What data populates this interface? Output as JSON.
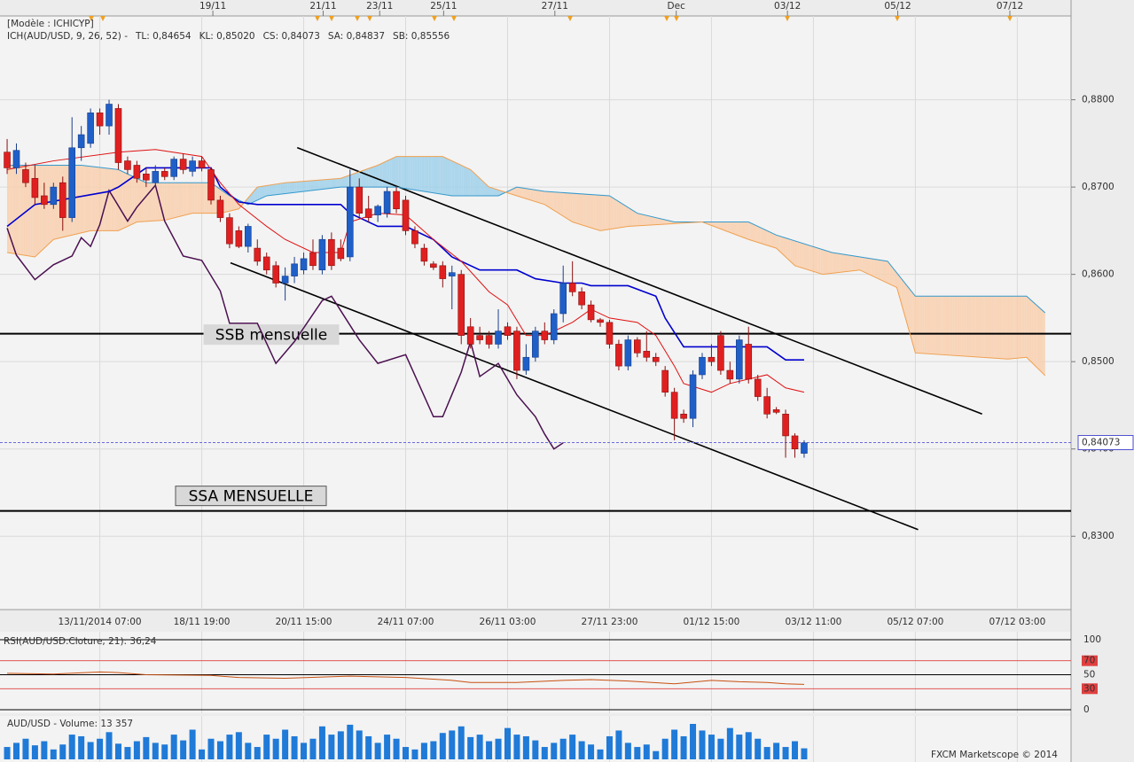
{
  "chart_data": [
    {
      "type": "candlestick",
      "header": [
        {
          "text": "[Modèle : ICHICYP]",
          "color": "#303030"
        },
        {
          "text": "ICH(AUD/USD, 9, 26, 52) -",
          "color": "#cc0000"
        },
        {
          "text": "TL: 0,84654",
          "color": "#cc0000"
        },
        {
          "text": "KL: 0,85020",
          "color": "#0000cc"
        },
        {
          "text": "CS: 0,84073",
          "color": "#4b1050"
        },
        {
          "text": "SA: 0,84837",
          "color": "#f08c30"
        },
        {
          "text": "SB: 0,85556",
          "color": "#3399cc"
        }
      ],
      "xlim": [
        -0.77,
        114.8
      ],
      "ylim": [
        0.8216,
        0.8896
      ],
      "xticks": [
        {
          "value": 10,
          "label": "13/11/2014 07:00"
        },
        {
          "value": 21,
          "label": "18/11 19:00"
        },
        {
          "value": 32,
          "label": "20/11 15:00"
        },
        {
          "value": 43,
          "label": "24/11 07:00"
        },
        {
          "value": 54,
          "label": "26/11 03:00"
        },
        {
          "value": 65,
          "label": "27/11 23:00"
        },
        {
          "value": 76,
          "label": "01/12 15:00"
        },
        {
          "value": 87,
          "label": "03/12 11:00"
        },
        {
          "value": 98,
          "label": "05/12 07:00"
        },
        {
          "value": 109,
          "label": "07/12 03:00"
        }
      ],
      "top_ticks": [
        {
          "value": 22.2,
          "label": "19/11"
        },
        {
          "value": 34.1,
          "label": "21/11"
        },
        {
          "value": 40.2,
          "label": "23/11"
        },
        {
          "value": 47.1,
          "label": "25/11"
        },
        {
          "value": 59.1,
          "label": "27/11"
        },
        {
          "value": 72.2,
          "label": "Dec"
        },
        {
          "value": 84.2,
          "label": "03/12"
        },
        {
          "value": 96.1,
          "label": "05/12"
        },
        {
          "value": 108.2,
          "label": "07/12"
        }
      ],
      "yticks": [
        {
          "value": 0.83,
          "label": "0,8300"
        },
        {
          "value": 0.84,
          "label": "0,8400"
        },
        {
          "value": 0.85,
          "label": "0,8500"
        },
        {
          "value": 0.86,
          "label": "0,8600"
        },
        {
          "value": 0.87,
          "label": "0,8700"
        },
        {
          "value": 0.88,
          "label": "0,8800"
        }
      ],
      "grid": true,
      "up_color": "#1f5fc8",
      "down_color": "#e02020",
      "open": [
        0.874,
        0.8722,
        0.872,
        0.871,
        0.869,
        0.868,
        0.8705,
        0.8665,
        0.8745,
        0.875,
        0.8785,
        0.877,
        0.879,
        0.873,
        0.8725,
        0.8715,
        0.8705,
        0.8718,
        0.8712,
        0.8732,
        0.8718,
        0.873,
        0.872,
        0.8685,
        0.8665,
        0.865,
        0.8632,
        0.863,
        0.862,
        0.861,
        0.859,
        0.8598,
        0.8605,
        0.8625,
        0.8605,
        0.864,
        0.863,
        0.862,
        0.87,
        0.8675,
        0.8668,
        0.867,
        0.8695,
        0.8685,
        0.865,
        0.863,
        0.8612,
        0.861,
        0.8598,
        0.86,
        0.854,
        0.853,
        0.853,
        0.852,
        0.854,
        0.8535,
        0.849,
        0.8505,
        0.8535,
        0.8525,
        0.8555,
        0.859,
        0.858,
        0.8565,
        0.8548,
        0.8545,
        0.852,
        0.8495,
        0.8525,
        0.8512,
        0.8505,
        0.849,
        0.8465,
        0.844,
        0.8435,
        0.8485,
        0.8505,
        0.853,
        0.849,
        0.848,
        0.852,
        0.848,
        0.846,
        0.8445,
        0.844,
        0.8415,
        0.8395
      ],
      "high": [
        0.8755,
        0.875,
        0.8728,
        0.8725,
        0.8705,
        0.8705,
        0.8712,
        0.878,
        0.877,
        0.879,
        0.879,
        0.88,
        0.8795,
        0.8735,
        0.873,
        0.8722,
        0.8725,
        0.8722,
        0.8735,
        0.8738,
        0.8735,
        0.8735,
        0.8722,
        0.869,
        0.867,
        0.8655,
        0.8658,
        0.864,
        0.8625,
        0.8615,
        0.8608,
        0.862,
        0.8625,
        0.864,
        0.8645,
        0.8648,
        0.864,
        0.872,
        0.871,
        0.869,
        0.868,
        0.87,
        0.87,
        0.869,
        0.8655,
        0.8635,
        0.8615,
        0.8615,
        0.861,
        0.8605,
        0.855,
        0.854,
        0.8535,
        0.856,
        0.8545,
        0.854,
        0.852,
        0.854,
        0.8545,
        0.856,
        0.861,
        0.8615,
        0.8585,
        0.857,
        0.855,
        0.8548,
        0.8525,
        0.853,
        0.8528,
        0.8535,
        0.851,
        0.8495,
        0.847,
        0.8445,
        0.849,
        0.851,
        0.852,
        0.8535,
        0.85,
        0.853,
        0.854,
        0.8485,
        0.847,
        0.8448,
        0.8445,
        0.8418,
        0.841
      ],
      "low": [
        0.8715,
        0.8715,
        0.87,
        0.868,
        0.8675,
        0.8675,
        0.865,
        0.866,
        0.873,
        0.8745,
        0.876,
        0.876,
        0.872,
        0.8715,
        0.8705,
        0.87,
        0.87,
        0.8708,
        0.8708,
        0.8715,
        0.8712,
        0.8718,
        0.868,
        0.866,
        0.863,
        0.863,
        0.8625,
        0.861,
        0.86,
        0.8585,
        0.857,
        0.859,
        0.86,
        0.8605,
        0.86,
        0.8605,
        0.8615,
        0.8615,
        0.8665,
        0.866,
        0.866,
        0.8665,
        0.867,
        0.8645,
        0.863,
        0.861,
        0.8605,
        0.8585,
        0.856,
        0.852,
        0.8515,
        0.852,
        0.8515,
        0.8515,
        0.8525,
        0.848,
        0.8485,
        0.85,
        0.852,
        0.852,
        0.8545,
        0.8575,
        0.856,
        0.8545,
        0.854,
        0.8515,
        0.849,
        0.849,
        0.8505,
        0.85,
        0.8495,
        0.846,
        0.841,
        0.843,
        0.8425,
        0.848,
        0.8495,
        0.8485,
        0.8475,
        0.8475,
        0.8475,
        0.8455,
        0.8435,
        0.844,
        0.839,
        0.839,
        0.839
      ],
      "close": [
        0.8722,
        0.8742,
        0.8705,
        0.8688,
        0.868,
        0.87,
        0.8665,
        0.8745,
        0.876,
        0.8785,
        0.877,
        0.8795,
        0.8728,
        0.872,
        0.871,
        0.8708,
        0.8718,
        0.8712,
        0.8732,
        0.872,
        0.873,
        0.8722,
        0.8685,
        0.8665,
        0.8635,
        0.8632,
        0.8655,
        0.8615,
        0.8605,
        0.859,
        0.8598,
        0.8612,
        0.8618,
        0.861,
        0.864,
        0.861,
        0.8618,
        0.87,
        0.867,
        0.8665,
        0.8678,
        0.8695,
        0.8675,
        0.865,
        0.8635,
        0.8615,
        0.8608,
        0.8595,
        0.8602,
        0.853,
        0.852,
        0.8525,
        0.852,
        0.8535,
        0.853,
        0.849,
        0.8505,
        0.8535,
        0.8525,
        0.8555,
        0.859,
        0.858,
        0.8565,
        0.8548,
        0.8545,
        0.852,
        0.8495,
        0.8525,
        0.851,
        0.8505,
        0.85,
        0.8465,
        0.8435,
        0.8435,
        0.8485,
        0.8505,
        0.85,
        0.849,
        0.848,
        0.8525,
        0.848,
        0.846,
        0.844,
        0.8442,
        0.8415,
        0.84,
        0.8407
      ],
      "cloud": {
        "up_fill": "#9fd0ea",
        "down_fill": "#f8cfae"
      },
      "lines": [
        {
          "role": "senkou_b",
          "color": "#3399cc",
          "width": 1,
          "x": [
            0,
            8,
            12,
            15,
            22,
            24,
            26,
            28,
            36,
            42,
            48,
            53,
            55,
            58,
            65,
            68,
            72,
            80,
            83,
            89,
            95,
            98,
            110,
            112
          ],
          "values": [
            0.8725,
            0.8725,
            0.872,
            0.8705,
            0.8705,
            0.869,
            0.868,
            0.869,
            0.87,
            0.87,
            0.869,
            0.869,
            0.87,
            0.8695,
            0.869,
            0.867,
            0.866,
            0.866,
            0.8645,
            0.8625,
            0.8615,
            0.8575,
            0.8575,
            0.8556
          ]
        },
        {
          "role": "senkou_a",
          "color": "#f0a050",
          "width": 1,
          "x": [
            0,
            3,
            5,
            9,
            12,
            14,
            17,
            20,
            23,
            25,
            27,
            30,
            36,
            40,
            42,
            47,
            50,
            52,
            55,
            58,
            61,
            64,
            67,
            75,
            80,
            83,
            85,
            88,
            92,
            96,
            98,
            108,
            110,
            112
          ],
          "values": [
            0.8625,
            0.862,
            0.864,
            0.865,
            0.865,
            0.866,
            0.8662,
            0.867,
            0.867,
            0.8675,
            0.87,
            0.8705,
            0.871,
            0.8725,
            0.8735,
            0.8735,
            0.872,
            0.87,
            0.869,
            0.868,
            0.866,
            0.865,
            0.8655,
            0.866,
            0.864,
            0.863,
            0.861,
            0.86,
            0.8605,
            0.8585,
            0.851,
            0.8503,
            0.8505,
            0.8484
          ]
        },
        {
          "role": "chikou",
          "color": "#4b1050",
          "width": 1.5,
          "x": [
            0,
            1,
            3,
            5,
            7,
            8,
            9,
            10,
            11,
            13,
            14,
            16,
            17,
            19,
            21,
            23,
            24,
            27,
            29,
            31,
            34,
            35,
            38,
            40,
            43,
            46,
            47,
            49,
            50,
            51,
            53,
            55,
            57,
            58,
            59,
            60
          ],
          "values": [
            0.8653,
            0.8622,
            0.8594,
            0.8611,
            0.8621,
            0.8642,
            0.8632,
            0.8657,
            0.8696,
            0.8661,
            0.8677,
            0.8702,
            0.8661,
            0.8621,
            0.8616,
            0.8581,
            0.8544,
            0.8544,
            0.8498,
            0.8523,
            0.857,
            0.8575,
            0.8525,
            0.8498,
            0.8508,
            0.8437,
            0.8437,
            0.8488,
            0.8523,
            0.8483,
            0.8498,
            0.8462,
            0.8437,
            0.8417,
            0.84,
            0.8407
          ]
        },
        {
          "role": "kijun",
          "color": "#0000d0",
          "width": 1.6,
          "x": [
            0,
            3,
            11,
            12,
            15,
            22,
            23,
            25,
            27,
            36,
            37,
            40,
            43,
            44,
            46,
            48,
            51,
            55,
            57,
            60,
            62,
            63,
            67,
            70,
            71,
            73,
            82,
            84,
            86
          ],
          "values": [
            0.8655,
            0.868,
            0.8695,
            0.87,
            0.8722,
            0.8722,
            0.87,
            0.8683,
            0.868,
            0.868,
            0.867,
            0.8655,
            0.8655,
            0.865,
            0.864,
            0.862,
            0.8605,
            0.8605,
            0.8595,
            0.859,
            0.859,
            0.8587,
            0.8587,
            0.8575,
            0.855,
            0.8517,
            0.8517,
            0.8502,
            0.8502
          ]
        },
        {
          "role": "tenkan",
          "color": "#e01010",
          "width": 1,
          "x": [
            0,
            5,
            12,
            16,
            21,
            23,
            25,
            28,
            30,
            33,
            36,
            37,
            40,
            43,
            46,
            49,
            52,
            54,
            56,
            58,
            61,
            63,
            65,
            68,
            70,
            72,
            73,
            76,
            78,
            80,
            82,
            84,
            86
          ],
          "values": [
            0.872,
            0.873,
            0.874,
            0.8743,
            0.8735,
            0.8705,
            0.868,
            0.8655,
            0.864,
            0.8625,
            0.8625,
            0.866,
            0.867,
            0.8668,
            0.864,
            0.8615,
            0.858,
            0.8565,
            0.853,
            0.853,
            0.8545,
            0.856,
            0.855,
            0.8545,
            0.853,
            0.8495,
            0.8475,
            0.8465,
            0.8475,
            0.848,
            0.8485,
            0.847,
            0.8465
          ]
        }
      ],
      "trendlines": [
        {
          "x": [
            31.3,
            105.2
          ],
          "values": [
            0.87452,
            0.844
          ]
        },
        {
          "x": [
            24.1,
            98.3
          ],
          "values": [
            0.86132,
            0.83076
          ]
        }
      ],
      "levels": [
        {
          "label": "SSB mensuelle",
          "value": 0.8532
        },
        {
          "label": "SSA MENSUELLE",
          "value": 0.8329
        }
      ],
      "last_price": {
        "value": 0.84073,
        "label": "0,84073"
      }
    },
    {
      "type": "line",
      "title": "RSI(AUD/USD.Cloture, 21): 36,24",
      "color": "#c85010",
      "x": [
        0,
        5,
        10,
        12,
        15,
        22,
        25,
        30,
        37,
        43,
        48,
        50,
        55,
        60,
        63,
        67,
        72,
        76,
        79,
        82,
        84,
        86
      ],
      "values": [
        52,
        51,
        54,
        53,
        50,
        49,
        46,
        45,
        48,
        46,
        42,
        39,
        39,
        42,
        43,
        41,
        37,
        42,
        40,
        39,
        37,
        36.24
      ],
      "ylim": [
        0,
        100
      ],
      "yticks": [
        100,
        70,
        50,
        30,
        0
      ],
      "tick_colors": [
        "#000000",
        "#e04040",
        "#000000",
        "#e04040",
        "#000000"
      ]
    },
    {
      "type": "bar",
      "title": "AUD/USD - Volume: 13 357",
      "color": "#1f7ad8",
      "values": [
        15000,
        20000,
        25000,
        17000,
        22000,
        12000,
        18000,
        30000,
        28000,
        21000,
        25000,
        33000,
        19000,
        15000,
        22000,
        27000,
        20000,
        18000,
        30000,
        23000,
        36000,
        12000,
        25000,
        22000,
        30000,
        33000,
        20000,
        15000,
        30000,
        25000,
        36000,
        28000,
        20000,
        25000,
        40000,
        30000,
        34000,
        42000,
        35000,
        28000,
        20000,
        30000,
        25000,
        15000,
        12000,
        20000,
        22000,
        32000,
        35000,
        40000,
        27000,
        30000,
        22000,
        25000,
        38000,
        30000,
        28000,
        23000,
        15000,
        20000,
        25000,
        30000,
        22000,
        18000,
        12000,
        28000,
        35000,
        20000,
        15000,
        18000,
        10000,
        25000,
        36000,
        28000,
        43000,
        35000,
        30000,
        25000,
        38000,
        30000,
        33000,
        25000,
        15000,
        20000,
        15000,
        22000,
        13357
      ],
      "source": "FXCM Marketscope © 2014"
    }
  ]
}
